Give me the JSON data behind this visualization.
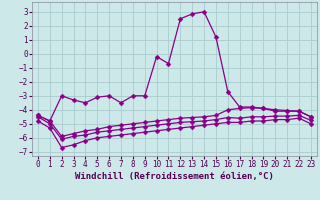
{
  "xlabel": "Windchill (Refroidissement éolien,°C)",
  "xlim": [
    -0.5,
    23.5
  ],
  "ylim": [
    -7.3,
    3.7
  ],
  "xticks": [
    0,
    1,
    2,
    3,
    4,
    5,
    6,
    7,
    8,
    9,
    10,
    11,
    12,
    13,
    14,
    15,
    16,
    17,
    18,
    19,
    20,
    21,
    22,
    23
  ],
  "yticks": [
    -7,
    -6,
    -5,
    -4,
    -3,
    -2,
    -1,
    0,
    1,
    2,
    3
  ],
  "bg_color": "#cce8e8",
  "grid_color": "#aacccc",
  "line_color": "#880088",
  "line1_y": [
    -4.4,
    -4.8,
    -3.0,
    -3.3,
    -3.5,
    -3.1,
    -3.0,
    -3.5,
    -3.0,
    -3.0,
    -0.2,
    -0.7,
    2.5,
    2.85,
    3.0,
    1.2,
    -2.7,
    -3.8,
    -3.8,
    -3.9,
    -4.1,
    -4.1,
    -4.1,
    -4.5
  ],
  "line2_y": [
    -4.4,
    -4.8,
    -5.9,
    -5.7,
    -5.5,
    -5.4,
    -5.2,
    -5.1,
    -5.0,
    -4.9,
    -4.8,
    -4.7,
    -4.6,
    -4.55,
    -4.5,
    -4.4,
    -4.0,
    -3.9,
    -3.85,
    -3.9,
    -4.0,
    -4.05,
    -4.1,
    -4.5
  ],
  "line3_y": [
    -4.5,
    -5.0,
    -6.1,
    -5.9,
    -5.8,
    -5.6,
    -5.5,
    -5.4,
    -5.3,
    -5.2,
    -5.1,
    -5.0,
    -4.9,
    -4.85,
    -4.8,
    -4.7,
    -4.55,
    -4.6,
    -4.5,
    -4.5,
    -4.45,
    -4.45,
    -4.4,
    -4.75
  ],
  "line4_y": [
    -4.8,
    -5.3,
    -6.7,
    -6.5,
    -6.2,
    -6.0,
    -5.9,
    -5.8,
    -5.7,
    -5.6,
    -5.5,
    -5.4,
    -5.3,
    -5.2,
    -5.1,
    -5.0,
    -4.9,
    -4.9,
    -4.8,
    -4.8,
    -4.7,
    -4.7,
    -4.6,
    -5.0
  ],
  "x": [
    0,
    1,
    2,
    3,
    4,
    5,
    6,
    7,
    8,
    9,
    10,
    11,
    12,
    13,
    14,
    15,
    16,
    17,
    18,
    19,
    20,
    21,
    22,
    23
  ],
  "markersize": 2.5,
  "linewidth": 0.9,
  "tick_fontsize": 5.5,
  "xlabel_fontsize": 6.5
}
